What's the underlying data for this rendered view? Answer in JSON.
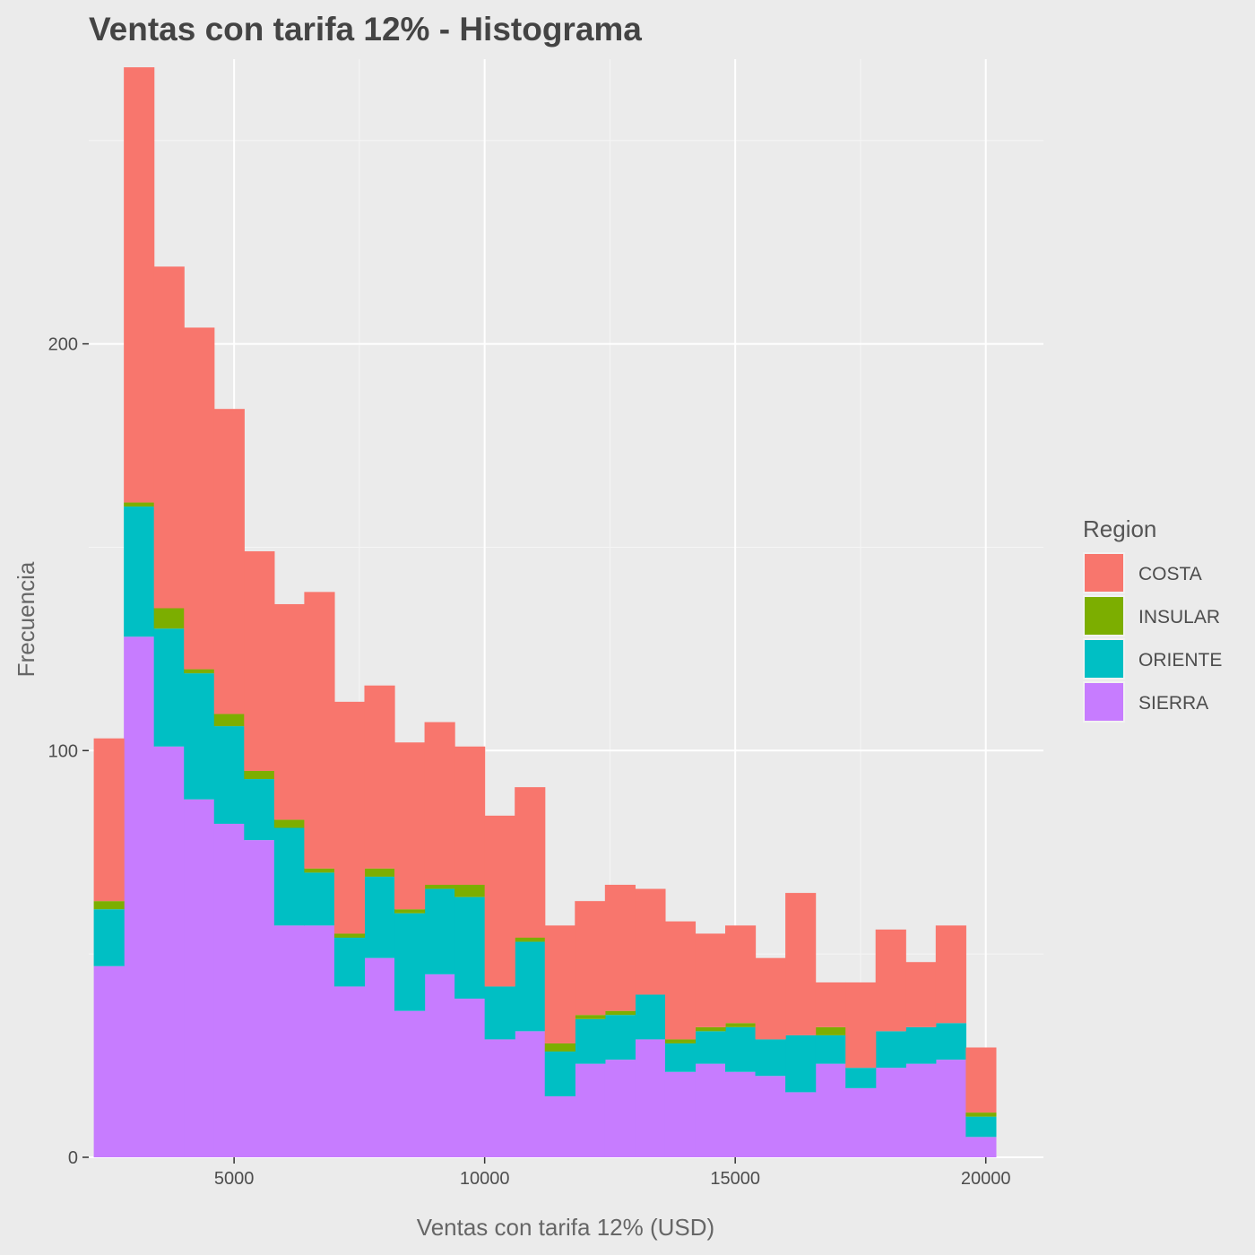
{
  "chart_data": {
    "type": "bar",
    "stacked": true,
    "title": "Ventas con tarifa 12% - Histograma",
    "xlabel": "Ventas con tarifa 12% (USD)",
    "ylabel": "Frecuencia",
    "x_ticks": [
      5000,
      10000,
      15000,
      20000
    ],
    "y_ticks": [
      0,
      100,
      200
    ],
    "xlim": [
      2100,
      21150
    ],
    "ylim": [
      0,
      270
    ],
    "grid": true,
    "legend_position": "right",
    "bin_width": 600,
    "bin_starts": [
      2200,
      2800,
      3400,
      4000,
      4600,
      5200,
      5800,
      6400,
      7000,
      7600,
      8200,
      8800,
      9400,
      10000,
      10600,
      11200,
      11800,
      12400,
      13000,
      13600,
      14200,
      14800,
      15400,
      16000,
      16600,
      17200,
      17800,
      18400,
      19000,
      19600
    ],
    "legend": {
      "title": "Region",
      "items": [
        {
          "name": "COSTA",
          "color": "#F8766D"
        },
        {
          "name": "INSULAR",
          "color": "#7CAE00"
        },
        {
          "name": "ORIENTE",
          "color": "#00BFC4"
        },
        {
          "name": "SIERRA",
          "color": "#C77CFF"
        }
      ]
    },
    "series": [
      {
        "name": "SIERRA",
        "color": "#C77CFF",
        "values": [
          47,
          128,
          101,
          88,
          82,
          78,
          57,
          57,
          42,
          49,
          36,
          45,
          39,
          29,
          31,
          15,
          23,
          24,
          29,
          21,
          23,
          21,
          20,
          16,
          23,
          17,
          22,
          23,
          24,
          5
        ]
      },
      {
        "name": "ORIENTE",
        "color": "#00BFC4",
        "values": [
          14,
          32,
          29,
          31,
          24,
          15,
          24,
          13,
          12,
          20,
          24,
          21,
          25,
          13,
          22,
          11,
          11,
          11,
          11,
          7,
          8,
          11,
          9,
          14,
          7,
          5,
          9,
          9,
          9,
          5
        ]
      },
      {
        "name": "INSULAR",
        "color": "#7CAE00",
        "values": [
          2,
          1,
          5,
          1,
          3,
          2,
          2,
          1,
          1,
          2,
          1,
          1,
          3,
          0,
          1,
          2,
          1,
          1,
          0,
          1,
          1,
          1,
          0,
          0,
          2,
          0,
          0,
          0,
          0,
          1
        ]
      },
      {
        "name": "COSTA",
        "color": "#F8766D",
        "values": [
          40,
          107,
          84,
          84,
          75,
          54,
          53,
          68,
          57,
          45,
          41,
          40,
          34,
          42,
          37,
          29,
          28,
          31,
          26,
          29,
          23,
          24,
          20,
          35,
          11,
          21,
          25,
          16,
          24,
          16
        ]
      }
    ]
  }
}
